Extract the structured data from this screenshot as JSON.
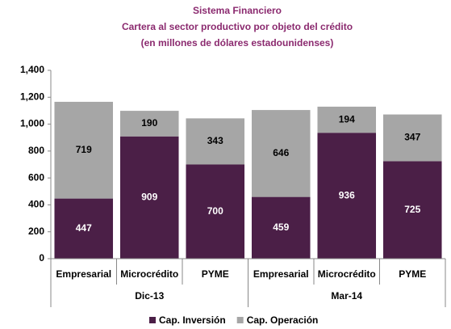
{
  "chart_data": {
    "type": "stacked_bar",
    "title": "Sistema Financiero",
    "subtitle": [
      "Cartera al sector productivo por objeto del crédito",
      "(en millones de dólares estadounidenses)"
    ],
    "categories": [
      "Empresarial",
      "Microcrédito",
      "PYME",
      "Empresarial",
      "Microcrédito",
      "PYME"
    ],
    "group_labels": [
      "Dic-13",
      "Mar-14"
    ],
    "series": [
      {
        "name": "Cap. Inversión",
        "color": "#4b1f47",
        "values": [
          447,
          909,
          700,
          459,
          936,
          725
        ]
      },
      {
        "name": "Cap. Operación",
        "color": "#a6a6a6",
        "values": [
          719,
          190,
          343,
          646,
          194,
          347
        ]
      }
    ],
    "ylim": [
      0,
      1400
    ],
    "yticks": [
      0,
      200,
      400,
      600,
      800,
      {
        "value": 1000,
        "label": "1,000"
      },
      {
        "value": 1200,
        "label": "1,200"
      },
      {
        "value": 1400,
        "label": "1,400"
      }
    ],
    "grid": false,
    "legend": "bottom"
  }
}
